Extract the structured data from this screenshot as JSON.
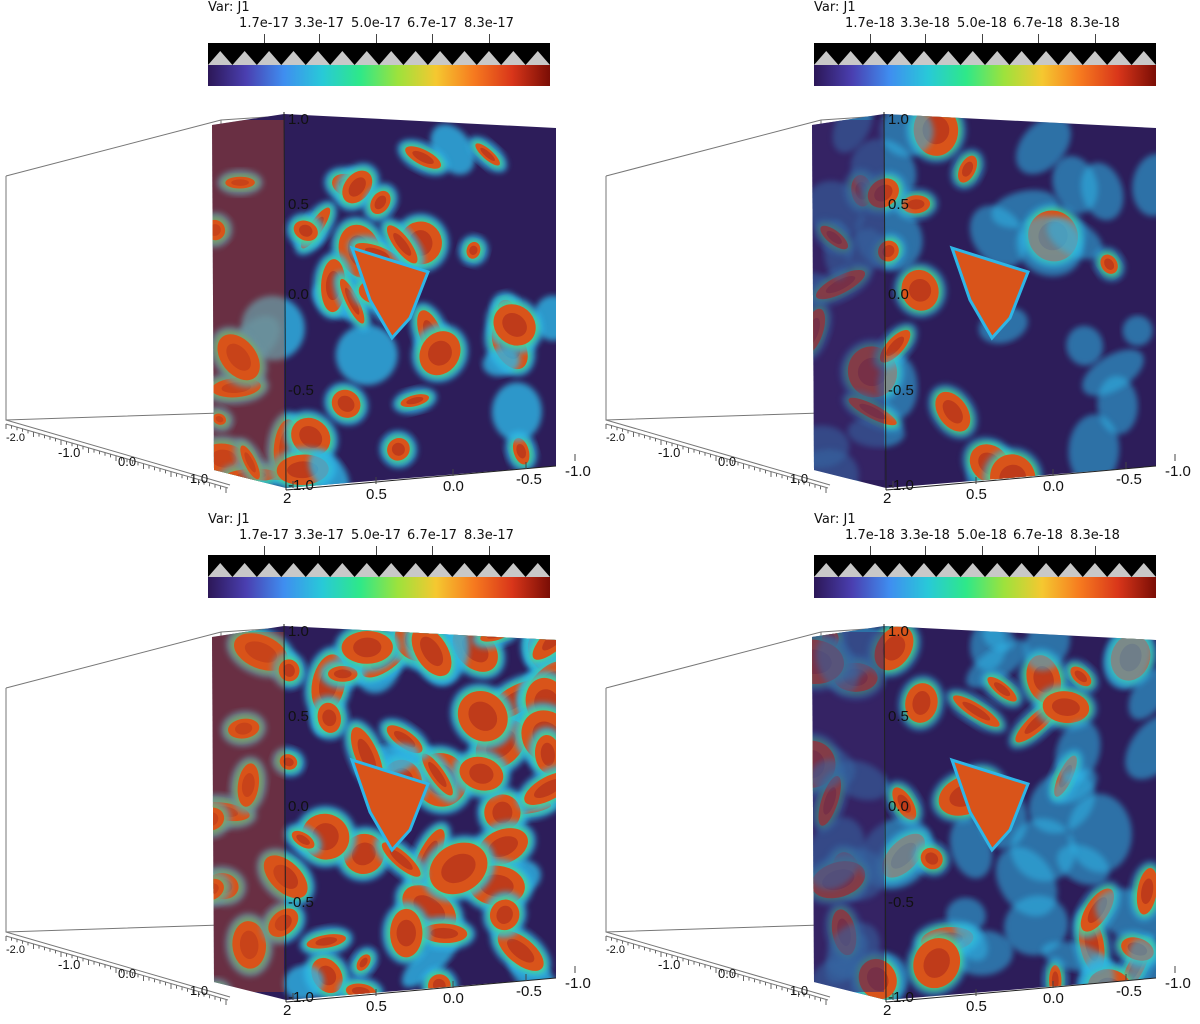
{
  "colorbar": {
    "var_label": "Var: J1",
    "stops": [
      "#2c1757",
      "#4a3fb0",
      "#3f8ef0",
      "#28c9d8",
      "#2ee889",
      "#9de23c",
      "#f5c830",
      "#f67a1f",
      "#d9361a",
      "#7a0d05"
    ]
  },
  "panels": [
    {
      "id": "top-left",
      "var_label": "Var: J1",
      "ticks": [
        "1.7e-17",
        "3.3e-17",
        "5.0e-17",
        "6.7e-17",
        "8.3e-17"
      ],
      "vertical_axis": [
        "1.0",
        "0.5",
        "0.0",
        "-0.5",
        "-1.0"
      ],
      "bottom_axis": [
        "2",
        "0.5",
        "0.0",
        "-0.5",
        "-1.0"
      ],
      "depth_axis": [
        "-2.0",
        "-1.0",
        "0.0",
        "1.0"
      ]
    },
    {
      "id": "top-right",
      "var_label": "Var: J1",
      "ticks": [
        "1.7e-18",
        "3.3e-18",
        "5.0e-18",
        "6.7e-18",
        "8.3e-18"
      ],
      "vertical_axis": [
        "1.0",
        "0.5",
        "0.0",
        "-0.5",
        "-1.0"
      ],
      "bottom_axis": [
        "2",
        "0.5",
        "0.0",
        "-0.5",
        "-1.0"
      ],
      "depth_axis": [
        "-2.0",
        "-1.0",
        "0.0",
        "1.0"
      ]
    },
    {
      "id": "bottom-left",
      "var_label": "Var: J1",
      "ticks": [
        "1.7e-17",
        "3.3e-17",
        "5.0e-17",
        "6.7e-17",
        "8.3e-17"
      ],
      "vertical_axis": [
        "1.0",
        "0.5",
        "0.0",
        "-0.5",
        "-1.0"
      ],
      "bottom_axis": [
        "2",
        "0.5",
        "0.0",
        "-0.5",
        "-1.0"
      ],
      "depth_axis": [
        "-2.0",
        "-1.0",
        "0.0",
        "1.0"
      ]
    },
    {
      "id": "bottom-right",
      "var_label": "Var: J1",
      "ticks": [
        "1.7e-18",
        "3.3e-18",
        "5.0e-18",
        "6.7e-18",
        "8.3e-18"
      ],
      "vertical_axis": [
        "1.0",
        "0.5",
        "0.0",
        "-0.5",
        "-1.0"
      ],
      "bottom_axis": [
        "2",
        "0.5",
        "0.0",
        "-0.5",
        "-1.0"
      ],
      "depth_axis": [
        "-2.0",
        "-1.0",
        "0.0",
        "1.0"
      ]
    }
  ]
}
